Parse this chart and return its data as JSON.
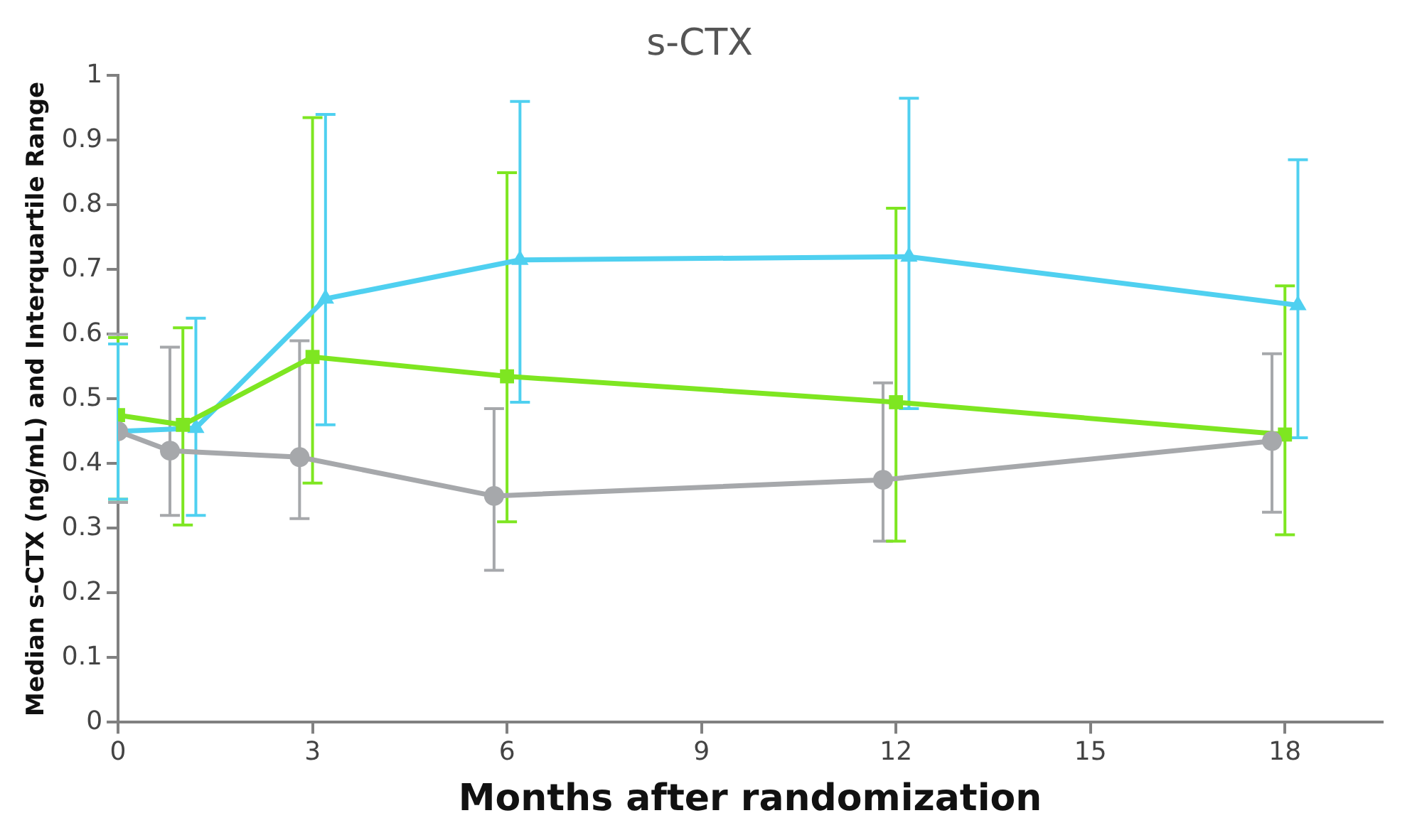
{
  "chart_data": {
    "type": "line",
    "title": "s-CTX",
    "xlabel": "Months after randomization",
    "ylabel": "Median s-CTX (ng/mL) and Interquartile Range",
    "xlim": [
      0,
      19.5
    ],
    "xticks": [
      0,
      3,
      6,
      9,
      12,
      15,
      18
    ],
    "ylim": [
      0,
      1
    ],
    "yticks": [
      0,
      0.1,
      0.2,
      0.3,
      0.4,
      0.5,
      0.6,
      0.7,
      0.8,
      0.9,
      1
    ],
    "grid": false,
    "legend": false,
    "series": [
      {
        "color": "#a6a8ab",
        "marker": "circle",
        "x": [
          0,
          0.8,
          2.8,
          5.8,
          11.8,
          17.8
        ],
        "values": [
          0.45,
          0.42,
          0.41,
          0.35,
          0.375,
          0.435
        ],
        "errors": [
          [
            0.34,
            0.6
          ],
          [
            0.32,
            0.58
          ],
          [
            0.315,
            0.59
          ],
          [
            0.235,
            0.485
          ],
          [
            0.28,
            0.525
          ],
          [
            0.325,
            0.57
          ]
        ]
      },
      {
        "color": "#7ee621",
        "marker": "square",
        "x": [
          0,
          1,
          3,
          6,
          12,
          18
        ],
        "values": [
          0.475,
          0.46,
          0.565,
          0.535,
          0.495,
          0.445
        ],
        "errors": [
          [
            0.345,
            0.595
          ],
          [
            0.305,
            0.61
          ],
          [
            0.37,
            0.935
          ],
          [
            0.31,
            0.85
          ],
          [
            0.28,
            0.795
          ],
          [
            0.29,
            0.675
          ]
        ]
      },
      {
        "color": "#4fd0f0",
        "marker": "triangle",
        "x": [
          0,
          1.2,
          3.2,
          6.2,
          12.2,
          18.2
        ],
        "values": [
          0.45,
          0.455,
          0.655,
          0.715,
          0.72,
          0.645
        ],
        "errors": [
          [
            0.345,
            0.585
          ],
          [
            0.32,
            0.625
          ],
          [
            0.46,
            0.94
          ],
          [
            0.495,
            0.96
          ],
          [
            0.485,
            0.965
          ],
          [
            0.44,
            0.87
          ]
        ]
      }
    ]
  }
}
